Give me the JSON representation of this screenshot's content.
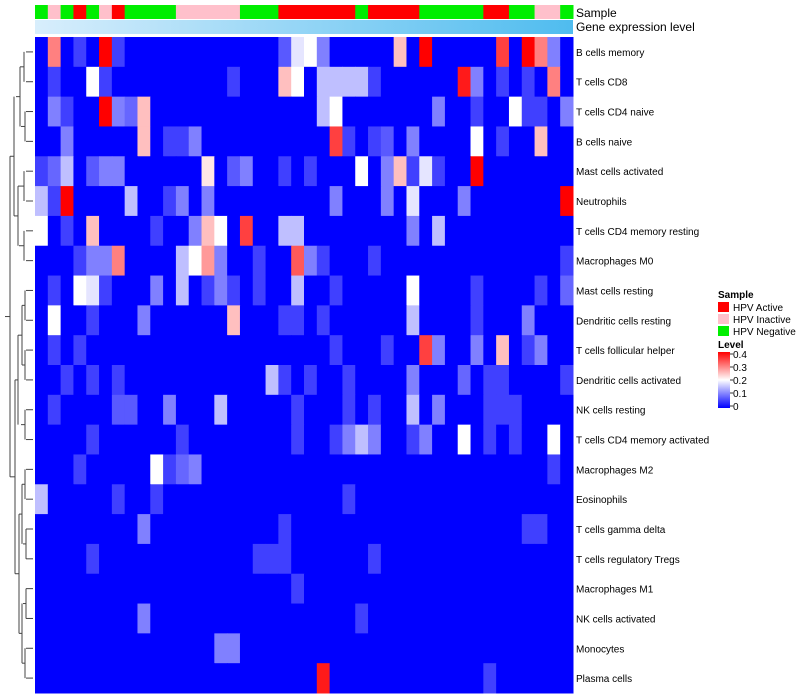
{
  "chart_data": {
    "type": "heatmap",
    "annotation_tracks": [
      "Sample",
      "Gene expression level"
    ],
    "rows": [
      "B cells memory",
      "T cells CD8",
      "T cells CD4 naive",
      "B cells naive",
      "Mast cells activated",
      "Neutrophils",
      "T cells CD4 memory resting",
      "Macrophages M0",
      "Mast cells resting",
      "Dendritic cells resting",
      "T cells follicular helper",
      "Dendritic cells activated",
      "NK cells resting",
      "T cells CD4 memory activated",
      "Macrophages M2",
      "Eosinophils",
      "T cells gamma delta",
      "T cells regulatory  Tregs",
      "Macrophages M1",
      "NK cells activated",
      "Monocytes",
      "Plasma cells"
    ],
    "sample_groups": [
      "N",
      "I",
      "N",
      "A",
      "N",
      "I",
      "A",
      "N",
      "N",
      "N",
      "N",
      "I",
      "I",
      "I",
      "I",
      "I",
      "N",
      "N",
      "N",
      "A",
      "A",
      "A",
      "A",
      "A",
      "A",
      "N",
      "A",
      "A",
      "A",
      "A",
      "N",
      "N",
      "N",
      "N",
      "N",
      "A",
      "A",
      "N",
      "N",
      "I",
      "I",
      "N"
    ],
    "legend": {
      "sample_title": "Sample",
      "sample_entries": [
        {
          "key": "A",
          "label": "HPV Active",
          "color": "#ff0000"
        },
        {
          "key": "I",
          "label": "HPV Inactive",
          "color": "#ffc0cb"
        },
        {
          "key": "N",
          "label": "HPV Negative",
          "color": "#00ee00"
        }
      ],
      "level_title": "Level",
      "level_ticks": [
        "0.4",
        "0.3",
        "0.2",
        "0.1",
        "0"
      ],
      "level_range": [
        0,
        0.4
      ],
      "color_low": "#0000ff",
      "color_mid": "#ffffff",
      "color_high": "#ff0000"
    },
    "values": [
      [
        0.0,
        0.3,
        0.0,
        0.05,
        0.0,
        0.4,
        0.05,
        0.0,
        0.0,
        0.0,
        0.0,
        0.0,
        0.0,
        0.0,
        0.0,
        0.0,
        0.0,
        0.0,
        0.0,
        0.07,
        0.18,
        0.2,
        0.1,
        0.0,
        0.0,
        0.0,
        0.0,
        0.0,
        0.25,
        0.0,
        0.4,
        0.0,
        0.0,
        0.0,
        0.0,
        0.0,
        0.35,
        0.0,
        0.4,
        0.3,
        0.1,
        0.0
      ],
      [
        0.0,
        0.05,
        0.0,
        0.0,
        0.2,
        0.05,
        0.0,
        0.0,
        0.0,
        0.0,
        0.0,
        0.0,
        0.0,
        0.0,
        0.0,
        0.05,
        0.0,
        0.0,
        0.0,
        0.25,
        0.2,
        0.0,
        0.15,
        0.15,
        0.15,
        0.15,
        0.05,
        0.0,
        0.0,
        0.0,
        0.0,
        0.0,
        0.0,
        0.38,
        0.1,
        0.0,
        0.05,
        0.0,
        0.05,
        0.0,
        0.3,
        0.0
      ],
      [
        0.0,
        0.1,
        0.05,
        0.0,
        0.0,
        0.4,
        0.1,
        0.08,
        0.25,
        0.0,
        0.0,
        0.0,
        0.0,
        0.0,
        0.0,
        0.0,
        0.0,
        0.0,
        0.0,
        0.0,
        0.0,
        0.0,
        0.15,
        0.2,
        0.0,
        0.0,
        0.0,
        0.0,
        0.0,
        0.0,
        0.0,
        0.1,
        0.0,
        0.0,
        0.05,
        0.0,
        0.0,
        0.2,
        0.05,
        0.05,
        0.0,
        0.1
      ],
      [
        0.0,
        0.0,
        0.1,
        0.0,
        0.0,
        0.0,
        0.0,
        0.0,
        0.25,
        0.0,
        0.05,
        0.05,
        0.1,
        0.0,
        0.0,
        0.0,
        0.0,
        0.0,
        0.0,
        0.0,
        0.0,
        0.0,
        0.0,
        0.35,
        0.05,
        0.0,
        0.05,
        0.07,
        0.0,
        0.1,
        0.0,
        0.0,
        0.0,
        0.0,
        0.2,
        0.0,
        0.05,
        0.0,
        0.0,
        0.25,
        0.0,
        0.0
      ],
      [
        0.05,
        0.08,
        0.15,
        0.0,
        0.07,
        0.1,
        0.1,
        0.0,
        0.0,
        0.0,
        0.0,
        0.0,
        0.0,
        0.22,
        0.0,
        0.07,
        0.1,
        0.0,
        0.0,
        0.05,
        0.0,
        0.05,
        0.0,
        0.0,
        0.0,
        0.2,
        0.0,
        0.1,
        0.25,
        0.05,
        0.18,
        0.05,
        0.0,
        0.0,
        0.4,
        0.0,
        0.0,
        0.0,
        0.0,
        0.0,
        0.0,
        0.0
      ],
      [
        0.15,
        0.05,
        0.4,
        0.0,
        0.0,
        0.0,
        0.0,
        0.15,
        0.0,
        0.0,
        0.05,
        0.1,
        0.0,
        0.1,
        0.0,
        0.0,
        0.0,
        0.0,
        0.0,
        0.0,
        0.0,
        0.0,
        0.0,
        0.1,
        0.0,
        0.0,
        0.0,
        0.1,
        0.0,
        0.18,
        0.0,
        0.0,
        0.0,
        0.1,
        0.0,
        0.0,
        0.0,
        0.0,
        0.0,
        0.0,
        0.0,
        0.4
      ],
      [
        0.2,
        0.0,
        0.05,
        0.0,
        0.25,
        0.0,
        0.0,
        0.0,
        0.0,
        0.05,
        0.0,
        0.0,
        0.1,
        0.25,
        0.2,
        0.0,
        0.35,
        0.0,
        0.0,
        0.15,
        0.15,
        0.0,
        0.0,
        0.0,
        0.0,
        0.0,
        0.0,
        0.0,
        0.0,
        0.1,
        0.0,
        0.15,
        0.0,
        0.0,
        0.0,
        0.0,
        0.0,
        0.0,
        0.0,
        0.0,
        0.0,
        0.0
      ],
      [
        0.0,
        0.0,
        0.0,
        0.05,
        0.1,
        0.1,
        0.3,
        0.0,
        0.0,
        0.0,
        0.0,
        0.15,
        0.2,
        0.28,
        0.1,
        0.0,
        0.0,
        0.05,
        0.0,
        0.0,
        0.33,
        0.1,
        0.05,
        0.0,
        0.0,
        0.0,
        0.05,
        0.0,
        0.0,
        0.0,
        0.0,
        0.0,
        0.0,
        0.0,
        0.0,
        0.0,
        0.0,
        0.0,
        0.0,
        0.0,
        0.0,
        0.05
      ],
      [
        0.0,
        0.05,
        0.0,
        0.2,
        0.18,
        0.05,
        0.0,
        0.0,
        0.0,
        0.1,
        0.0,
        0.15,
        0.0,
        0.05,
        0.1,
        0.05,
        0.0,
        0.05,
        0.0,
        0.0,
        0.15,
        0.0,
        0.0,
        0.05,
        0.0,
        0.0,
        0.0,
        0.0,
        0.0,
        0.2,
        0.0,
        0.0,
        0.0,
        0.0,
        0.05,
        0.0,
        0.0,
        0.0,
        0.0,
        0.05,
        0.0,
        0.08
      ],
      [
        0.0,
        0.2,
        0.0,
        0.0,
        0.05,
        0.0,
        0.0,
        0.0,
        0.1,
        0.0,
        0.0,
        0.0,
        0.0,
        0.0,
        0.0,
        0.25,
        0.0,
        0.0,
        0.0,
        0.05,
        0.05,
        0.0,
        0.05,
        0.0,
        0.0,
        0.0,
        0.0,
        0.0,
        0.0,
        0.15,
        0.0,
        0.0,
        0.0,
        0.0,
        0.05,
        0.0,
        0.0,
        0.0,
        0.1,
        0.0,
        0.0,
        0.0
      ],
      [
        0.0,
        0.05,
        0.0,
        0.05,
        0.0,
        0.0,
        0.0,
        0.0,
        0.0,
        0.0,
        0.0,
        0.0,
        0.0,
        0.0,
        0.0,
        0.0,
        0.0,
        0.0,
        0.0,
        0.0,
        0.0,
        0.0,
        0.0,
        0.05,
        0.0,
        0.0,
        0.0,
        0.05,
        0.0,
        0.0,
        0.35,
        0.1,
        0.0,
        0.0,
        0.1,
        0.0,
        0.25,
        0.0,
        0.05,
        0.1,
        0.0,
        0.0
      ],
      [
        0.0,
        0.0,
        0.05,
        0.0,
        0.05,
        0.0,
        0.05,
        0.0,
        0.0,
        0.0,
        0.0,
        0.0,
        0.0,
        0.0,
        0.0,
        0.0,
        0.0,
        0.0,
        0.15,
        0.05,
        0.0,
        0.05,
        0.0,
        0.0,
        0.05,
        0.0,
        0.0,
        0.0,
        0.0,
        0.1,
        0.0,
        0.0,
        0.0,
        0.08,
        0.0,
        0.05,
        0.05,
        0.0,
        0.0,
        0.0,
        0.0,
        0.05
      ],
      [
        0.0,
        0.05,
        0.0,
        0.0,
        0.0,
        0.0,
        0.07,
        0.07,
        0.0,
        0.0,
        0.1,
        0.0,
        0.0,
        0.0,
        0.15,
        0.0,
        0.0,
        0.0,
        0.0,
        0.0,
        0.05,
        0.0,
        0.0,
        0.0,
        0.05,
        0.0,
        0.05,
        0.0,
        0.0,
        0.15,
        0.0,
        0.1,
        0.0,
        0.0,
        0.0,
        0.05,
        0.05,
        0.05,
        0.0,
        0.0,
        0.0,
        0.0
      ],
      [
        0.0,
        0.0,
        0.0,
        0.0,
        0.05,
        0.0,
        0.0,
        0.0,
        0.0,
        0.0,
        0.0,
        0.05,
        0.0,
        0.0,
        0.0,
        0.0,
        0.0,
        0.0,
        0.0,
        0.0,
        0.05,
        0.0,
        0.0,
        0.05,
        0.1,
        0.15,
        0.1,
        0.0,
        0.0,
        0.05,
        0.1,
        0.0,
        0.0,
        0.2,
        0.0,
        0.05,
        0.0,
        0.05,
        0.0,
        0.0,
        0.2,
        0.0
      ],
      [
        0.0,
        0.0,
        0.0,
        0.05,
        0.0,
        0.0,
        0.0,
        0.0,
        0.0,
        0.2,
        0.05,
        0.08,
        0.1,
        0.0,
        0.0,
        0.0,
        0.0,
        0.0,
        0.0,
        0.0,
        0.0,
        0.0,
        0.0,
        0.0,
        0.0,
        0.0,
        0.0,
        0.0,
        0.0,
        0.0,
        0.0,
        0.0,
        0.0,
        0.0,
        0.0,
        0.0,
        0.0,
        0.0,
        0.0,
        0.0,
        0.05,
        0.0
      ],
      [
        0.15,
        0.0,
        0.0,
        0.0,
        0.0,
        0.0,
        0.05,
        0.0,
        0.0,
        0.05,
        0.0,
        0.0,
        0.0,
        0.0,
        0.0,
        0.0,
        0.0,
        0.0,
        0.0,
        0.0,
        0.0,
        0.0,
        0.0,
        0.0,
        0.05,
        0.0,
        0.0,
        0.0,
        0.0,
        0.0,
        0.0,
        0.0,
        0.0,
        0.0,
        0.0,
        0.0,
        0.0,
        0.0,
        0.0,
        0.0,
        0.0,
        0.0
      ],
      [
        0.0,
        0.0,
        0.0,
        0.0,
        0.0,
        0.0,
        0.0,
        0.0,
        0.1,
        0.0,
        0.0,
        0.0,
        0.0,
        0.0,
        0.0,
        0.0,
        0.0,
        0.0,
        0.0,
        0.05,
        0.0,
        0.0,
        0.0,
        0.0,
        0.0,
        0.0,
        0.0,
        0.0,
        0.0,
        0.0,
        0.0,
        0.0,
        0.0,
        0.0,
        0.0,
        0.0,
        0.0,
        0.0,
        0.05,
        0.05,
        0.0,
        0.0
      ],
      [
        0.0,
        0.0,
        0.0,
        0.0,
        0.05,
        0.0,
        0.0,
        0.0,
        0.0,
        0.0,
        0.0,
        0.0,
        0.0,
        0.0,
        0.0,
        0.0,
        0.0,
        0.05,
        0.05,
        0.05,
        0.0,
        0.0,
        0.0,
        0.0,
        0.0,
        0.0,
        0.05,
        0.0,
        0.0,
        0.0,
        0.0,
        0.0,
        0.0,
        0.0,
        0.0,
        0.0,
        0.0,
        0.0,
        0.0,
        0.0,
        0.0,
        0.0
      ],
      [
        0.0,
        0.0,
        0.0,
        0.0,
        0.0,
        0.0,
        0.0,
        0.0,
        0.0,
        0.0,
        0.0,
        0.0,
        0.0,
        0.0,
        0.0,
        0.0,
        0.0,
        0.0,
        0.0,
        0.0,
        0.05,
        0.0,
        0.0,
        0.0,
        0.0,
        0.0,
        0.0,
        0.0,
        0.0,
        0.0,
        0.0,
        0.0,
        0.0,
        0.0,
        0.0,
        0.0,
        0.0,
        0.0,
        0.0,
        0.0,
        0.0,
        0.0
      ],
      [
        0.0,
        0.0,
        0.0,
        0.0,
        0.0,
        0.0,
        0.0,
        0.0,
        0.1,
        0.0,
        0.0,
        0.0,
        0.0,
        0.0,
        0.0,
        0.0,
        0.0,
        0.0,
        0.0,
        0.0,
        0.0,
        0.0,
        0.0,
        0.0,
        0.0,
        0.05,
        0.0,
        0.0,
        0.0,
        0.0,
        0.0,
        0.0,
        0.0,
        0.0,
        0.0,
        0.0,
        0.0,
        0.0,
        0.0,
        0.0,
        0.0,
        0.0
      ],
      [
        0.0,
        0.0,
        0.0,
        0.0,
        0.0,
        0.0,
        0.0,
        0.0,
        0.0,
        0.0,
        0.0,
        0.0,
        0.0,
        0.0,
        0.1,
        0.1,
        0.0,
        0.0,
        0.0,
        0.0,
        0.0,
        0.0,
        0.0,
        0.0,
        0.0,
        0.0,
        0.0,
        0.0,
        0.0,
        0.0,
        0.0,
        0.0,
        0.0,
        0.0,
        0.0,
        0.0,
        0.0,
        0.0,
        0.0,
        0.0,
        0.0,
        0.0
      ],
      [
        0.0,
        0.0,
        0.0,
        0.0,
        0.0,
        0.0,
        0.0,
        0.0,
        0.0,
        0.0,
        0.0,
        0.0,
        0.0,
        0.0,
        0.0,
        0.0,
        0.0,
        0.0,
        0.0,
        0.0,
        0.0,
        0.0,
        0.38,
        0.0,
        0.0,
        0.0,
        0.0,
        0.0,
        0.0,
        0.0,
        0.0,
        0.0,
        0.0,
        0.0,
        0.0,
        0.05,
        0.0,
        0.0,
        0.0,
        0.0,
        0.0,
        0.0
      ]
    ]
  }
}
